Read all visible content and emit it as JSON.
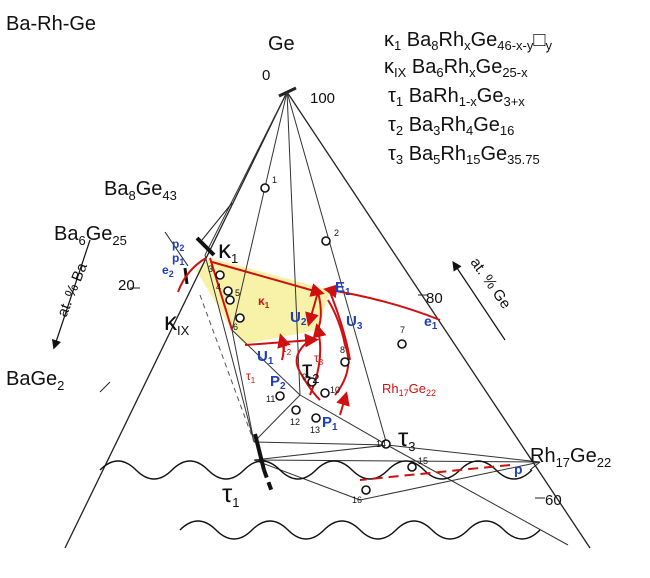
{
  "system": "Ba-Rh-Ge",
  "corner_label": "Ge",
  "ge_scale_top": "100",
  "axis_ba": "at. % Ba",
  "axis_ge": "at. % Ge",
  "tick_ba_20": "20",
  "tick_ge_80": "80",
  "tick_ge_60": "60",
  "tick_top_0": "0",
  "legend": [
    {
      "sym": "κ1",
      "formula": "Ba8RhxGe46-x-y□y"
    },
    {
      "sym": "κIX",
      "formula": "Ba6RhxGe25-x"
    },
    {
      "sym": "τ1",
      "formula": "BaRh1-xGe3+x"
    },
    {
      "sym": "τ2",
      "formula": "Ba3Rh4Ge16"
    },
    {
      "sym": "τ3",
      "formula": "Ba5Rh15Ge35.75"
    }
  ],
  "compounds": {
    "ba8ge43": "Ba8Ge43",
    "ba6ge25": "Ba6Ge25",
    "bage2": "BaGe2",
    "rh17ge22": "Rh17Ge22",
    "rh17ge22_red": "Rh17Ge22"
  },
  "phase_labels": {
    "kappa1": "κ1",
    "kappaIX": "κIX",
    "tau1": "τ1",
    "tau2": "τ2",
    "tau3": "τ3",
    "kappa1_red": "κ1",
    "tau1_red": "τ1",
    "tau2_red": "τ2",
    "tau3_red": "τ3"
  },
  "reactions": {
    "p2": "p2",
    "p1": "p1",
    "e2": "e2",
    "e1": "e1",
    "p": "p",
    "E1": "E1",
    "U1": "U1",
    "U2": "U2",
    "U3": "U3",
    "P1": "P1",
    "P2": "P2"
  },
  "sample_numbers": [
    "1",
    "2",
    "3",
    "4",
    "5",
    "6",
    "7",
    "8",
    "9",
    "10",
    "11",
    "12",
    "13",
    "14",
    "15",
    "16"
  ],
  "colors": {
    "red": "#d01010",
    "blue": "#1f3fbf",
    "fill": "#f7f2a8",
    "line": "#222222"
  }
}
